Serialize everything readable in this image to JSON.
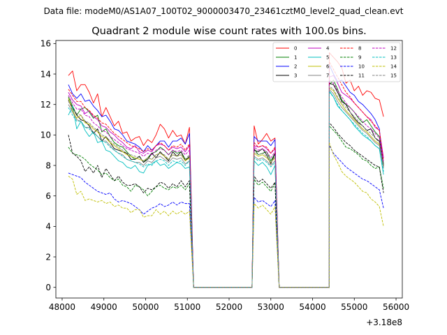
{
  "chart_data": {
    "type": "line",
    "supertitle": "Data file: modeM0/AS1A07_100T02_9000003470_23461cztM0_level2_quad_clean.evt",
    "title": "Quadrant 2 module wise count rates with 100.0s bins.",
    "xlabel": "",
    "ylabel": "",
    "x_offset_label": "+3.18e8",
    "xlim": [
      47850,
      56150
    ],
    "ylim": [
      -0.7,
      16.2
    ],
    "x_ticks": [
      48000,
      49000,
      50000,
      51000,
      52000,
      53000,
      54000,
      55000,
      56000
    ],
    "x_tick_labels": [
      "48000",
      "49000",
      "50000",
      "51000",
      "52000",
      "53000",
      "54000",
      "55000",
      "56000"
    ],
    "y_ticks": [
      0,
      2,
      4,
      6,
      8,
      10,
      12,
      14,
      16
    ],
    "y_tick_labels": [
      "0",
      "2",
      "4",
      "6",
      "8",
      "10",
      "12",
      "14",
      "16"
    ],
    "legend_position": "top-right",
    "segments": [
      {
        "x_start": 48150,
        "x_end": 51050,
        "step": 100
      },
      {
        "x_start": 51050,
        "x_end": 51200,
        "step": 100
      },
      {
        "x_start": 51200,
        "x_end": 52600,
        "step": 100
      },
      {
        "x_start": 52600,
        "x_end": 53100,
        "step": 100
      },
      {
        "x_start": 53100,
        "x_end": 53250,
        "step": 100
      },
      {
        "x_start": 53250,
        "x_end": 54400,
        "step": 100
      },
      {
        "x_start": 54400,
        "x_end": 55800,
        "step": 100
      }
    ],
    "series": [
      {
        "name": "0",
        "color": "#ff0000",
        "dash": "solid",
        "seg1": [
          13.9,
          14.2,
          12.9,
          13.3,
          13.3,
          12.8,
          12.1,
          12.7,
          11.2,
          11.8,
          11.2,
          10.6,
          10.9,
          10.1,
          10.2,
          9.6,
          9.8,
          9.9,
          9.3,
          9.7,
          9.5,
          10.0,
          10.7,
          10.4,
          9.8,
          10.3,
          9.9,
          10.0,
          9.4,
          10.5
        ],
        "seg2": [
          10.6,
          9.4,
          9.7,
          10.1,
          9.6,
          9.8
        ],
        "seg3": [
          15.4,
          15.1,
          14.8,
          14.4,
          13.4,
          13.6,
          12.9,
          13.2,
          12.6,
          12.9,
          12.8,
          12.4,
          12.3,
          11.2
        ]
      },
      {
        "name": "1",
        "color": "#008000",
        "dash": "solid",
        "seg1": [
          12.5,
          11.9,
          11.3,
          11.7,
          11.8,
          11.5,
          11.1,
          11.3,
          10.2,
          10.4,
          9.9,
          9.5,
          9.3,
          9.2,
          8.9,
          8.6,
          8.4,
          8.6,
          8.2,
          8.5,
          8.8,
          8.9,
          9.2,
          9.0,
          8.7,
          9.0,
          8.8,
          8.9,
          8.4,
          8.5
        ],
        "seg2": [
          9.1,
          8.7,
          8.8,
          8.9,
          8.3,
          8.8
        ],
        "seg3": [
          13.3,
          13.6,
          13.0,
          12.3,
          12.0,
          11.8,
          11.5,
          11.1,
          10.8,
          11.0,
          10.6,
          10.2,
          9.9,
          8.1
        ]
      },
      {
        "name": "2",
        "color": "#0000ff",
        "dash": "solid",
        "seg1": [
          13.3,
          12.7,
          12.4,
          12.7,
          12.2,
          12.3,
          11.9,
          11.6,
          11.2,
          11.3,
          10.9,
          10.4,
          10.3,
          10.0,
          9.6,
          9.5,
          9.4,
          9.2,
          8.9,
          9.3,
          9.0,
          9.3,
          9.6,
          9.6,
          9.2,
          9.6,
          9.6,
          9.8,
          9.4,
          10.1
        ],
        "seg2": [
          9.9,
          9.6,
          9.6,
          9.6,
          9.3,
          9.7
        ],
        "seg3": [
          14.6,
          14.0,
          13.5,
          13.6,
          13.2,
          12.8,
          12.6,
          12.2,
          12.0,
          11.7,
          11.4,
          11.0,
          10.4,
          7.9
        ]
      },
      {
        "name": "3",
        "color": "#000000",
        "dash": "solid",
        "seg1": [
          12.3,
          11.8,
          11.3,
          11.0,
          10.9,
          10.6,
          10.1,
          10.4,
          9.6,
          9.9,
          9.5,
          9.1,
          9.0,
          8.9,
          8.8,
          8.4,
          8.4,
          8.6,
          8.2,
          8.4,
          8.8,
          8.5,
          8.9,
          8.6,
          8.3,
          8.9,
          8.6,
          8.9,
          8.3,
          8.6
        ],
        "seg2": [
          9.0,
          8.9,
          9.1,
          8.7,
          8.1,
          8.8
        ],
        "seg3": [
          13.4,
          13.3,
          12.8,
          12.2,
          12.0,
          11.5,
          11.1,
          10.8,
          10.6,
          10.3,
          10.4,
          9.8,
          9.6,
          8.0
        ]
      },
      {
        "name": "4",
        "color": "#bf00bf",
        "dash": "solid",
        "seg1": [
          12.8,
          12.3,
          12.0,
          11.9,
          11.4,
          11.6,
          11.2,
          11.0,
          10.6,
          10.5,
          10.2,
          10.0,
          9.7,
          9.5,
          9.2,
          9.1,
          9.3,
          8.9,
          8.8,
          9.0,
          8.9,
          9.3,
          9.4,
          9.3,
          9.0,
          9.2,
          9.1,
          9.2,
          8.9,
          9.3
        ],
        "seg2": [
          9.3,
          9.2,
          9.3,
          9.1,
          8.8,
          9.1
        ],
        "seg3": [
          13.8,
          13.9,
          13.4,
          12.8,
          12.6,
          12.4,
          12.1,
          11.8,
          11.5,
          11.2,
          11.0,
          10.5,
          10.3,
          8.5
        ]
      },
      {
        "name": "5",
        "color": "#00bfbf",
        "dash": "solid",
        "seg1": [
          11.3,
          11.9,
          10.4,
          10.9,
          10.3,
          9.9,
          10.2,
          9.5,
          9.6,
          9.0,
          8.9,
          8.6,
          8.3,
          8.2,
          7.9,
          7.8,
          8.0,
          7.6,
          7.5,
          8.0,
          8.1,
          8.3,
          8.0,
          8.1,
          7.8,
          8.0,
          8.2,
          8.1,
          7.8,
          7.9
        ],
        "seg2": [
          8.3,
          8.0,
          8.2,
          7.9,
          7.4,
          8.0
        ],
        "seg3": [
          12.9,
          12.5,
          11.9,
          11.6,
          11.3,
          11.0,
          10.6,
          10.3,
          10.0,
          9.8,
          9.6,
          9.3,
          9.1,
          7.4
        ]
      },
      {
        "name": "6",
        "color": "#bfbf00",
        "dash": "solid",
        "seg1": [
          12.4,
          11.6,
          11.1,
          11.3,
          10.8,
          10.7,
          10.4,
          10.2,
          9.9,
          9.8,
          9.5,
          9.3,
          9.1,
          8.9,
          8.7,
          8.6,
          8.5,
          8.4,
          8.3,
          8.5,
          8.4,
          8.7,
          8.8,
          8.6,
          8.4,
          8.7,
          8.6,
          8.7,
          8.3,
          8.5
        ],
        "seg2": [
          8.8,
          8.6,
          8.7,
          8.5,
          8.2,
          8.5
        ],
        "seg3": [
          13.1,
          12.9,
          12.4,
          12.0,
          11.6,
          11.3,
          11.0,
          10.7,
          10.4,
          10.2,
          9.9,
          9.6,
          9.4,
          7.9
        ]
      },
      {
        "name": "7",
        "color": "#808080",
        "dash": "solid",
        "seg1": [
          12.0,
          11.5,
          11.0,
          10.9,
          10.5,
          10.5,
          10.2,
          9.9,
          9.6,
          9.6,
          9.3,
          9.0,
          8.8,
          8.7,
          8.4,
          8.3,
          8.2,
          8.2,
          8.0,
          8.3,
          8.2,
          8.5,
          8.6,
          8.4,
          8.2,
          8.5,
          8.4,
          8.5,
          8.1,
          8.3
        ],
        "seg2": [
          8.6,
          8.4,
          8.5,
          8.3,
          8.0,
          8.3
        ],
        "seg3": [
          13.0,
          12.7,
          12.2,
          11.8,
          11.5,
          11.2,
          10.9,
          10.6,
          10.3,
          10.1,
          9.8,
          9.5,
          9.3,
          7.8
        ]
      },
      {
        "name": "8",
        "color": "#ff0000",
        "dash": "dashed",
        "seg1": [
          13.0,
          12.6,
          12.2,
          12.2,
          11.8,
          11.6,
          11.3,
          11.1,
          10.8,
          10.7,
          10.4,
          10.1,
          9.9,
          9.7,
          9.5,
          9.3,
          9.2,
          9.1,
          8.9,
          9.1,
          9.0,
          9.3,
          9.5,
          9.3,
          9.0,
          9.3,
          9.2,
          9.4,
          9.0,
          9.4
        ],
        "seg2": [
          9.5,
          9.2,
          9.3,
          9.2,
          8.8,
          9.2
        ],
        "seg3": [
          14.8,
          14.3,
          13.8,
          13.3,
          12.8,
          12.5,
          12.1,
          11.8,
          11.5,
          11.2,
          10.9,
          10.6,
          10.3,
          8.3
        ]
      },
      {
        "name": "9",
        "color": "#008000",
        "dash": "dashed",
        "seg1": [
          9.2,
          8.8,
          8.7,
          8.6,
          8.4,
          8.1,
          7.9,
          7.7,
          7.4,
          7.5,
          7.2,
          7.0,
          7.1,
          6.7,
          6.6,
          6.3,
          6.7,
          6.6,
          6.4,
          6.0,
          6.3,
          6.6,
          6.7,
          6.5,
          6.4,
          6.6,
          6.5,
          6.7,
          6.4,
          6.8
        ],
        "seg2": [
          7.1,
          6.7,
          6.9,
          6.6,
          6.3,
          6.8
        ],
        "seg3": [
          10.6,
          10.3,
          10.0,
          9.6,
          9.2,
          9.1,
          8.9,
          8.7,
          8.4,
          8.3,
          8.0,
          7.8,
          7.9,
          6.5
        ]
      },
      {
        "name": "10",
        "color": "#0000ff",
        "dash": "dashed",
        "seg1": [
          7.5,
          7.4,
          7.3,
          7.2,
          6.9,
          6.7,
          6.5,
          6.3,
          6.2,
          6.1,
          6.2,
          5.8,
          5.6,
          5.7,
          5.6,
          5.5,
          5.3,
          5.1,
          4.8,
          5.0,
          5.2,
          5.3,
          5.5,
          5.3,
          5.4,
          5.6,
          5.4,
          5.6,
          5.5,
          5.5
        ],
        "seg2": [
          5.9,
          5.6,
          5.7,
          5.5,
          5.3,
          5.7
        ],
        "seg3": [
          9.3,
          8.8,
          8.5,
          8.2,
          7.9,
          7.7,
          7.5,
          7.3,
          7.1,
          7.0,
          6.8,
          6.6,
          6.4,
          5.2
        ]
      },
      {
        "name": "11",
        "color": "#000000",
        "dash": "dashed",
        "seg1": [
          10.0,
          8.8,
          8.6,
          8.3,
          7.6,
          7.9,
          7.5,
          8.0,
          7.2,
          7.8,
          7.4,
          7.0,
          7.3,
          6.9,
          6.7,
          6.7,
          6.8,
          6.6,
          6.2,
          6.5,
          6.4,
          6.6,
          6.9,
          6.8,
          6.5,
          6.8,
          6.6,
          7.0,
          6.6,
          7.0
        ],
        "seg2": [
          7.3,
          6.9,
          7.1,
          6.8,
          6.5,
          6.9
        ],
        "seg3": [
          10.8,
          10.5,
          10.1,
          9.8,
          9.5,
          9.3,
          9.0,
          8.8,
          8.6,
          8.4,
          8.2,
          8.0,
          7.9,
          6.2
        ]
      },
      {
        "name": "12",
        "color": "#bf00bf",
        "dash": "dashed",
        "seg1": [
          12.6,
          12.1,
          11.7,
          11.7,
          11.3,
          11.2,
          10.8,
          10.6,
          10.3,
          10.2,
          9.9,
          9.7,
          9.5,
          9.3,
          9.1,
          9.0,
          8.9,
          8.8,
          8.6,
          8.8,
          8.7,
          9.0,
          9.1,
          9.0,
          8.7,
          9.0,
          8.9,
          9.0,
          8.7,
          9.0
        ],
        "seg2": [
          9.2,
          9.0,
          9.1,
          8.9,
          8.5,
          8.9
        ],
        "seg3": [
          13.6,
          13.4,
          12.9,
          12.5,
          12.1,
          11.8,
          11.5,
          11.2,
          10.9,
          10.6,
          10.4,
          10.1,
          9.8,
          8.2
        ]
      },
      {
        "name": "13",
        "color": "#00bfbf",
        "dash": "dashed",
        "seg1": [
          11.8,
          11.3,
          10.9,
          10.9,
          10.5,
          10.4,
          10.1,
          9.9,
          9.6,
          9.5,
          9.2,
          9.0,
          8.8,
          8.6,
          8.4,
          8.3,
          8.2,
          8.1,
          7.9,
          8.1,
          8.0,
          8.3,
          8.4,
          8.3,
          8.0,
          8.3,
          8.2,
          8.3,
          8.0,
          8.3
        ],
        "seg2": [
          8.5,
          8.3,
          8.4,
          8.2,
          7.9,
          8.2
        ],
        "seg3": [
          12.8,
          12.5,
          12.0,
          11.6,
          11.3,
          11.0,
          10.7,
          10.4,
          10.1,
          9.9,
          9.6,
          9.3,
          9.1,
          7.6
        ]
      },
      {
        "name": "14",
        "color": "#bfbf00",
        "dash": "dashed",
        "seg1": [
          7.3,
          7.1,
          6.1,
          6.3,
          5.7,
          5.8,
          5.7,
          5.6,
          5.7,
          5.5,
          5.6,
          5.3,
          5.4,
          5.2,
          5.2,
          4.9,
          5.1,
          5.1,
          4.6,
          4.7,
          4.7,
          5.1,
          4.8,
          5.0,
          4.7,
          5.0,
          4.8,
          5.0,
          4.8,
          5.0
        ],
        "seg2": [
          5.5,
          5.2,
          5.4,
          5.1,
          4.8,
          5.3
        ],
        "seg3": [
          9.5,
          8.7,
          8.2,
          7.6,
          7.3,
          7.1,
          6.9,
          6.6,
          6.3,
          6.2,
          5.8,
          5.6,
          5.3,
          4.0
        ]
      },
      {
        "name": "15",
        "color": "#808080",
        "dash": "dashed",
        "seg1": [
          12.2,
          11.7,
          11.4,
          11.3,
          10.9,
          10.8,
          10.5,
          10.3,
          10.0,
          9.9,
          9.6,
          9.4,
          9.2,
          9.0,
          8.8,
          8.7,
          8.6,
          8.5,
          8.3,
          8.5,
          8.4,
          8.7,
          8.8,
          8.7,
          8.4,
          8.7,
          8.6,
          8.7,
          8.4,
          8.7
        ],
        "seg2": [
          8.9,
          8.7,
          8.8,
          8.6,
          8.2,
          8.6
        ],
        "seg3": [
          13.2,
          13.0,
          12.5,
          12.1,
          11.8,
          11.5,
          11.2,
          10.9,
          10.6,
          10.3,
          10.1,
          9.8,
          9.5,
          7.9
        ]
      }
    ]
  }
}
